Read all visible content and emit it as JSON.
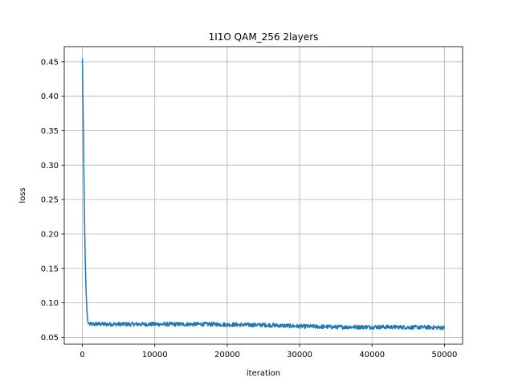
{
  "chart_data": {
    "type": "line",
    "title": "1I1O QAM_256 2layers",
    "xlabel": "iteration",
    "ylabel": "loss",
    "xlim": [
      -2500,
      52500
    ],
    "ylim": [
      0.04,
      0.472
    ],
    "grid": true,
    "xticks": [
      0,
      10000,
      20000,
      30000,
      40000,
      50000
    ],
    "xtick_labels": [
      "0",
      "10000",
      "20000",
      "30000",
      "40000",
      "50000"
    ],
    "yticks": [
      0.05,
      0.1,
      0.15,
      0.2,
      0.25,
      0.3,
      0.35,
      0.4,
      0.45
    ],
    "ytick_labels": [
      "0.05",
      "0.10",
      "0.15",
      "0.20",
      "0.25",
      "0.30",
      "0.35",
      "0.40",
      "0.45"
    ],
    "series": [
      {
        "color": "#1f77b4",
        "noise_amplitude": 0.003,
        "x": [
          0,
          100,
          200,
          300,
          400,
          500,
          600,
          700,
          800,
          1000,
          1500,
          2000,
          3000,
          5000,
          7500,
          10000,
          12500,
          15000,
          17500,
          20000,
          22500,
          25000,
          27500,
          30000,
          32500,
          35000,
          37500,
          40000,
          42500,
          45000,
          47500,
          50000
        ],
        "y": [
          0.455,
          0.38,
          0.3,
          0.22,
          0.16,
          0.12,
          0.095,
          0.078,
          0.07,
          0.069,
          0.069,
          0.0695,
          0.069,
          0.069,
          0.069,
          0.069,
          0.069,
          0.069,
          0.069,
          0.0685,
          0.068,
          0.068,
          0.067,
          0.066,
          0.0655,
          0.065,
          0.065,
          0.065,
          0.065,
          0.0645,
          0.0645,
          0.064
        ]
      }
    ]
  }
}
